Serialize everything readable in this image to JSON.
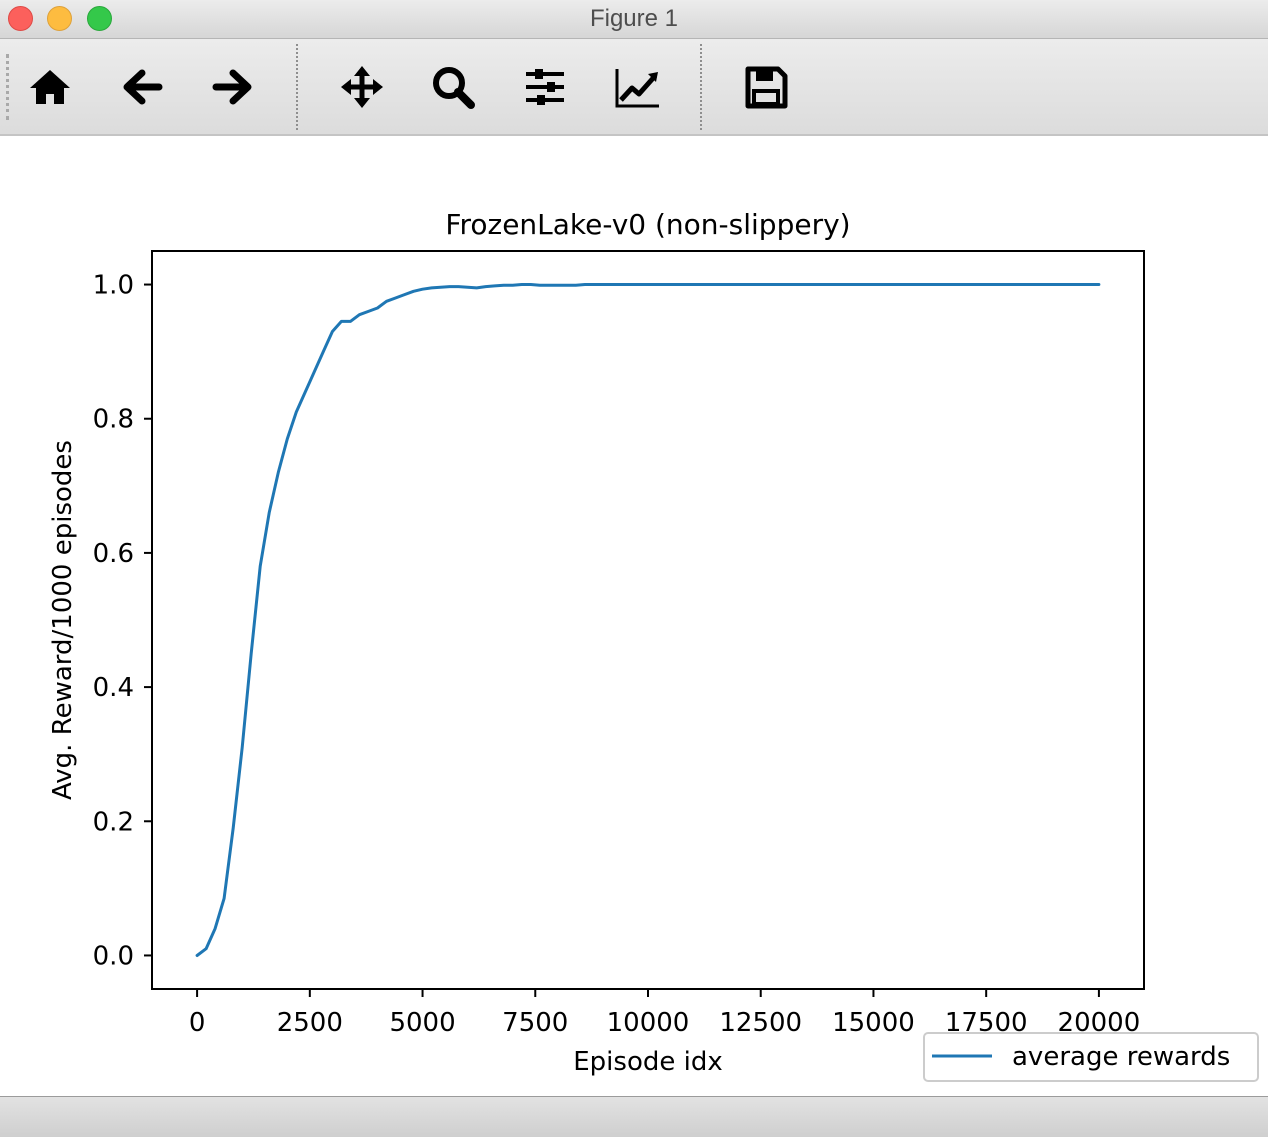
{
  "window": {
    "title": "Figure 1"
  },
  "toolbar": {
    "tools": [
      {
        "icon": "home-icon"
      },
      {
        "icon": "back-arrow-icon"
      },
      {
        "icon": "forward-arrow-icon"
      },
      {
        "icon": "pan-icon"
      },
      {
        "icon": "zoom-icon"
      },
      {
        "icon": "subplots-config-icon"
      },
      {
        "icon": "axes-edit-icon"
      },
      {
        "icon": "save-icon"
      }
    ]
  },
  "chart_data": {
    "type": "line",
    "title": "FrozenLake-v0 (non-slippery)",
    "xlabel": "Episode idx",
    "ylabel": "Avg. Reward/1000 episodes",
    "xlim": [
      -1000,
      21000
    ],
    "ylim": [
      -0.05,
      1.05
    ],
    "xticks": [
      0,
      2500,
      5000,
      7500,
      10000,
      12500,
      15000,
      17500,
      20000
    ],
    "xtick_labels": [
      "0",
      "2500",
      "5000",
      "7500",
      "10000",
      "12500",
      "15000",
      "17500",
      "20000"
    ],
    "yticks": [
      0.0,
      0.2,
      0.4,
      0.6,
      0.8,
      1.0
    ],
    "ytick_labels": [
      "0.0",
      "0.2",
      "0.4",
      "0.6",
      "0.8",
      "1.0"
    ],
    "grid": false,
    "legend": {
      "position": "lower-right, outside axes",
      "entries": [
        "average rewards"
      ]
    },
    "series": [
      {
        "name": "average rewards",
        "color": "#1f77b4",
        "x": [
          0,
          200,
          400,
          600,
          800,
          1000,
          1200,
          1400,
          1600,
          1800,
          2000,
          2200,
          2400,
          2600,
          2800,
          3000,
          3200,
          3400,
          3600,
          3800,
          4000,
          4200,
          4400,
          4600,
          4800,
          5000,
          5200,
          5400,
          5600,
          5800,
          6000,
          6200,
          6400,
          6600,
          6800,
          7000,
          7200,
          7400,
          7600,
          7800,
          8000,
          8200,
          8400,
          8600,
          9000,
          10000,
          12000,
          14000,
          16000,
          18000,
          20000
        ],
        "y": [
          0.0,
          0.01,
          0.04,
          0.085,
          0.19,
          0.31,
          0.45,
          0.58,
          0.66,
          0.72,
          0.77,
          0.81,
          0.84,
          0.87,
          0.9,
          0.93,
          0.945,
          0.945,
          0.955,
          0.96,
          0.965,
          0.975,
          0.98,
          0.985,
          0.99,
          0.993,
          0.995,
          0.996,
          0.997,
          0.997,
          0.996,
          0.995,
          0.997,
          0.998,
          0.999,
          0.999,
          1.0,
          1.0,
          0.999,
          0.999,
          0.999,
          0.999,
          0.999,
          1.0,
          1.0,
          1.0,
          1.0,
          1.0,
          1.0,
          1.0,
          1.0
        ]
      }
    ]
  }
}
